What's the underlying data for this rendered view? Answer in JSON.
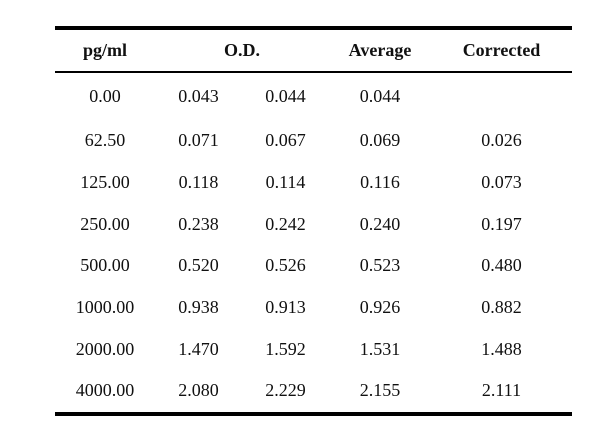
{
  "table": {
    "headers": {
      "pg": "pg/ml",
      "od": "O.D.",
      "average": "Average",
      "corrected": "Corrected"
    },
    "rows": [
      {
        "pg": "0.00",
        "od1": "0.043",
        "od2": "0.044",
        "average": "0.044",
        "corrected": ""
      },
      {
        "pg": "62.50",
        "od1": "0.071",
        "od2": "0.067",
        "average": "0.069",
        "corrected": "0.026"
      },
      {
        "pg": "125.00",
        "od1": "0.118",
        "od2": "0.114",
        "average": "0.116",
        "corrected": "0.073"
      },
      {
        "pg": "250.00",
        "od1": "0.238",
        "od2": "0.242",
        "average": "0.240",
        "corrected": "0.197"
      },
      {
        "pg": "500.00",
        "od1": "0.520",
        "od2": "0.526",
        "average": "0.523",
        "corrected": "0.480"
      },
      {
        "pg": "1000.00",
        "od1": "0.938",
        "od2": "0.913",
        "average": "0.926",
        "corrected": "0.882"
      },
      {
        "pg": "2000.00",
        "od1": "1.470",
        "od2": "1.592",
        "average": "1.531",
        "corrected": "1.488"
      },
      {
        "pg": "4000.00",
        "od1": "2.080",
        "od2": "2.229",
        "average": "2.155",
        "corrected": "2.111"
      }
    ]
  }
}
